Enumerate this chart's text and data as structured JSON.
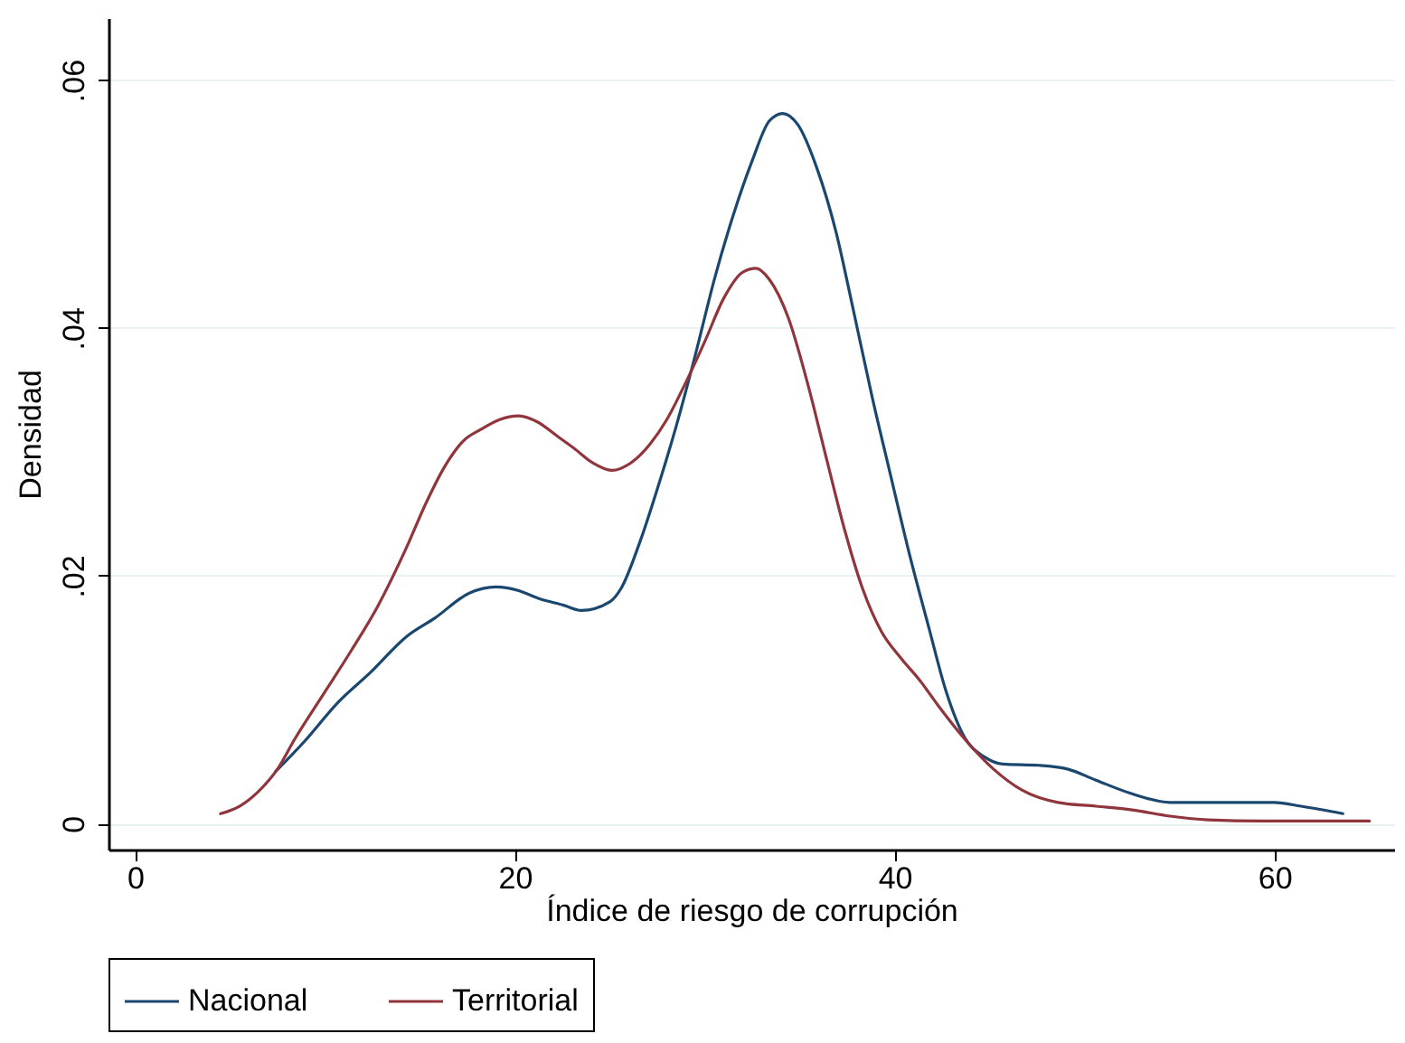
{
  "chart_data": {
    "type": "line",
    "xlabel": "Índice de riesgo de corrupción",
    "ylabel": "Densidad",
    "xlim": [
      -1.4,
      66.3
    ],
    "ylim": [
      -0.0021,
      0.065
    ],
    "xticks": [
      0,
      20,
      40,
      60
    ],
    "yticks": [
      {
        "value": 0,
        "label": "0"
      },
      {
        "value": 0.02,
        "label": ".02"
      },
      {
        "value": 0.04,
        "label": ".04"
      },
      {
        "value": 0.06,
        "label": ".06"
      }
    ],
    "grid": "y",
    "legend": "bottom",
    "line_style": "solid",
    "marker": "none",
    "series": [
      {
        "name": "Nacional",
        "color": "#1a476f",
        "x": [
          7.4,
          8.9,
          10.7,
          12.4,
          14.3,
          15.8,
          17.6,
          19.0,
          20.2,
          21.2,
          22.6,
          23.5,
          25.0,
          25.6,
          26.6,
          27.5,
          28.5,
          29.5,
          30.5,
          31.5,
          32.5,
          33.4,
          34.1,
          34.9,
          35.9,
          36.9,
          37.8,
          38.8,
          39.8,
          40.8,
          41.8,
          42.7,
          43.7,
          44.7,
          45.7,
          47.6,
          49.1,
          50.6,
          52.5,
          54.5,
          57.5,
          60.0,
          61.4,
          63.6
        ],
        "values": [
          0.0042,
          0.0066,
          0.0098,
          0.0122,
          0.0151,
          0.0166,
          0.0186,
          0.0191,
          0.0188,
          0.0182,
          0.0176,
          0.0172,
          0.0179,
          0.019,
          0.0228,
          0.027,
          0.0321,
          0.0378,
          0.0439,
          0.0491,
          0.0535,
          0.0567,
          0.0573,
          0.0564,
          0.0529,
          0.0478,
          0.0416,
          0.0345,
          0.028,
          0.0216,
          0.0158,
          0.0107,
          0.0069,
          0.0054,
          0.0048,
          0.0047,
          0.0044,
          0.0035,
          0.0024,
          0.0017,
          0.0017,
          0.0017,
          0.0014,
          0.0008
        ]
      },
      {
        "name": "Territorial",
        "color": "#90353b",
        "x": [
          4.5,
          5.5,
          6.5,
          7.5,
          8.4,
          9.9,
          11.4,
          12.8,
          14.3,
          15.3,
          16.3,
          17.3,
          18.2,
          19.2,
          20.2,
          21.2,
          22.2,
          23.1,
          24.1,
          25.1,
          26.1,
          27.1,
          28.0,
          29.0,
          30.0,
          31.0,
          32.0,
          32.7,
          33.4,
          34.4,
          35.4,
          36.4,
          37.4,
          38.3,
          39.3,
          40.3,
          41.3,
          42.3,
          43.7,
          45.2,
          46.7,
          48.6,
          50.6,
          52.5,
          54.5,
          56.5,
          59.4,
          65.0
        ],
        "values": [
          0.0008,
          0.0014,
          0.0026,
          0.0044,
          0.0068,
          0.0104,
          0.014,
          0.0176,
          0.0223,
          0.0258,
          0.0288,
          0.0309,
          0.0318,
          0.0326,
          0.0329,
          0.0324,
          0.0313,
          0.0303,
          0.0291,
          0.0285,
          0.0291,
          0.0306,
          0.0326,
          0.0356,
          0.0389,
          0.0424,
          0.0445,
          0.0448,
          0.0439,
          0.0408,
          0.0356,
          0.0295,
          0.0235,
          0.019,
          0.0155,
          0.0134,
          0.0116,
          0.0095,
          0.0068,
          0.0044,
          0.0027,
          0.0017,
          0.0014,
          0.0011,
          0.0006,
          0.0003,
          0.0002,
          0.0002
        ]
      }
    ]
  }
}
